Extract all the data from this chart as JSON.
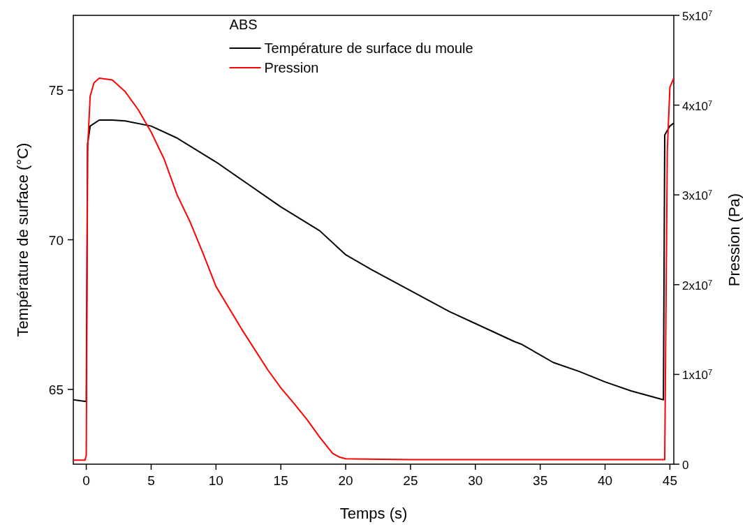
{
  "chart_data": {
    "type": "line",
    "xlabel": "Temps (s)",
    "ylabel": "Température de surface (°C)",
    "y2label": "Pression (Pa)",
    "legend_title": "ABS",
    "legend": "top",
    "grid": false,
    "line_style": "solid",
    "xlim": [
      -1,
      45.3
    ],
    "xticks": [
      0,
      5,
      10,
      15,
      20,
      25,
      30,
      35,
      40,
      45
    ],
    "ylim": [
      62.5,
      77.5
    ],
    "yticks": [
      65,
      70,
      75
    ],
    "y2lim": [
      0,
      50000000
    ],
    "y2ticks": [
      0,
      {
        "value": 10000000,
        "label": "1x10$^{7}$"
      },
      {
        "value": 20000000,
        "label": "2x10$^{7}$"
      },
      {
        "value": 30000000,
        "label": "3x10$^{7}$"
      },
      {
        "value": 40000000,
        "label": "4x10$^{7}$"
      },
      {
        "value": 50000000,
        "label": "5x10$^{7}$"
      }
    ],
    "series": [
      {
        "name": "Température de surface du moule",
        "color": "#000000",
        "x": [
          -1,
          -0.1,
          0,
          0.1,
          0.3,
          1,
          2,
          3,
          5,
          7,
          10,
          12,
          15,
          18,
          20,
          22,
          25,
          28,
          30,
          33,
          33.6,
          36,
          38,
          40,
          42,
          44.5,
          44.6,
          45,
          45.3
        ],
        "values": [
          64.65,
          64.6,
          64.6,
          73.2,
          73.8,
          74.0,
          74.0,
          73.97,
          73.8,
          73.4,
          72.6,
          72.0,
          71.1,
          70.3,
          69.5,
          69.0,
          68.3,
          67.6,
          67.2,
          66.6,
          66.5,
          65.9,
          65.6,
          65.25,
          64.95,
          64.65,
          73.5,
          73.8,
          73.9
        ]
      },
      {
        "name": "Pression",
        "color": "#ff0000",
        "axis": "y2",
        "x": [
          -1,
          -0.1,
          0,
          0.1,
          0.3,
          0.6,
          1,
          2,
          3,
          4,
          5,
          6,
          7,
          8,
          9,
          10,
          12,
          14,
          15,
          16,
          17,
          18,
          19,
          19.5,
          20,
          25,
          30,
          40,
          44.6,
          44.8,
          45,
          45.3
        ],
        "values": [
          450000,
          450000,
          1000000,
          35000000,
          41000000,
          42500000,
          43000000,
          42800000,
          41500000,
          39500000,
          37000000,
          34000000,
          30000000,
          27000000,
          23500000,
          19800000,
          15000000,
          10500000,
          8500000,
          6800000,
          5000000,
          3000000,
          1200000,
          800000,
          600000,
          500000,
          500000,
          500000,
          500000,
          35000000,
          42000000,
          43000000
        ]
      }
    ]
  }
}
